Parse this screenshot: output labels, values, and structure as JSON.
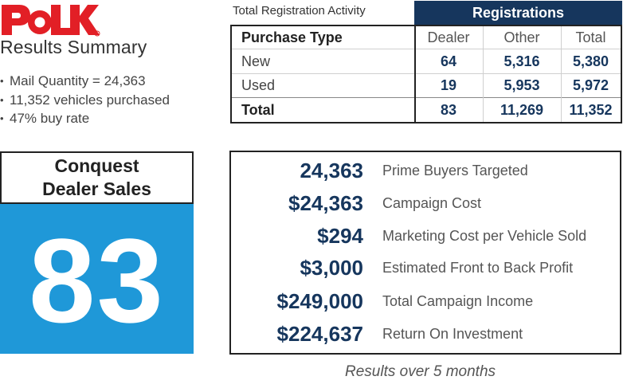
{
  "brand": {
    "logo_text": "POLK",
    "logo_color": "#e21f26"
  },
  "summary": {
    "title": "Results Summary",
    "bullets": [
      "Mail Quantity = 24,363",
      "11,352 vehicles purchased",
      "47% buy rate"
    ]
  },
  "conquest": {
    "line1": "Conquest",
    "line2": "Dealer Sales",
    "value": "83",
    "box_color": "#1f98d8"
  },
  "registration_table": {
    "caption": "Total Registration Activity",
    "group_header": "Registrations",
    "columns": [
      "Purchase Type",
      "Dealer",
      "Other",
      "Total"
    ],
    "rows": [
      {
        "type": "New",
        "dealer": "64",
        "other": "5,316",
        "total": "5,380"
      },
      {
        "type": "Used",
        "dealer": "19",
        "other": "5,953",
        "total": "5,972"
      },
      {
        "type": "Total",
        "dealer": "83",
        "other": "11,269",
        "total": "11,352"
      }
    ],
    "header_color": "#16365d"
  },
  "metrics": [
    {
      "value": "24,363",
      "label": "Prime Buyers Targeted"
    },
    {
      "value": "$24,363",
      "label": "Campaign Cost"
    },
    {
      "value": "$294",
      "label": "Marketing Cost per Vehicle Sold"
    },
    {
      "value": "$3,000",
      "label": "Estimated Front to Back Profit"
    },
    {
      "value": "$249,000",
      "label": "Total Campaign Income"
    },
    {
      "value": "$224,637",
      "label": "Return On Investment"
    }
  ],
  "footnote": "Results over 5 months"
}
